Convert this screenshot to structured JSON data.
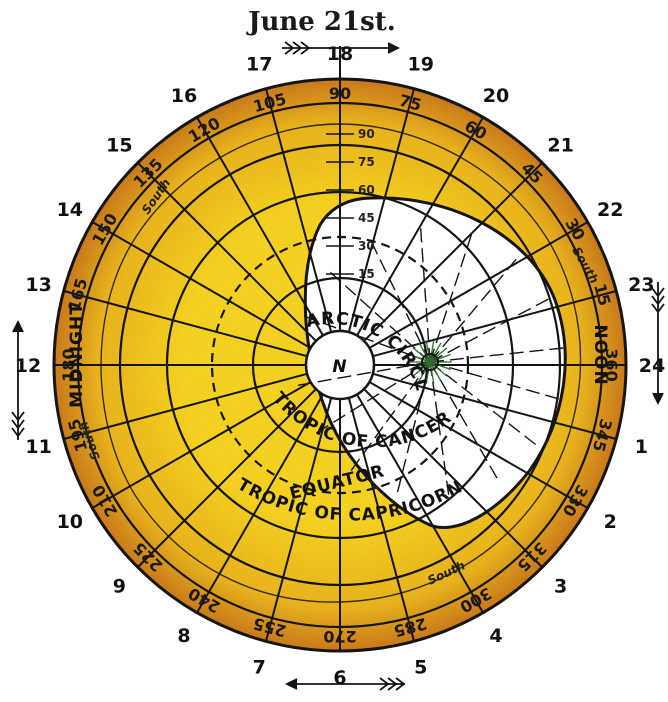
{
  "title": "June 21st.",
  "hour_labels": [
    {
      "text": "18",
      "deg": -90
    },
    {
      "text": "19",
      "deg": -75
    },
    {
      "text": "20",
      "deg": -60
    },
    {
      "text": "21",
      "deg": -45
    },
    {
      "text": "22",
      "deg": -30
    },
    {
      "text": "23",
      "deg": -15
    },
    {
      "text": "24",
      "deg": 0
    },
    {
      "text": "1",
      "deg": 15
    },
    {
      "text": "2",
      "deg": 30
    },
    {
      "text": "3",
      "deg": 45
    },
    {
      "text": "4",
      "deg": 60
    },
    {
      "text": "5",
      "deg": 75
    },
    {
      "text": "6",
      "deg": 90
    },
    {
      "text": "7",
      "deg": 105
    },
    {
      "text": "8",
      "deg": 120
    },
    {
      "text": "9",
      "deg": 135
    },
    {
      "text": "10",
      "deg": 150
    },
    {
      "text": "11",
      "deg": 165
    },
    {
      "text": "12",
      "deg": 180
    },
    {
      "text": "13",
      "deg": 195
    },
    {
      "text": "14",
      "deg": 210
    },
    {
      "text": "15",
      "deg": 225
    },
    {
      "text": "16",
      "deg": 240
    },
    {
      "text": "17",
      "deg": 255
    }
  ],
  "degree_labels": [
    {
      "text": "90",
      "deg": -90
    },
    {
      "text": "75",
      "deg": -75
    },
    {
      "text": "60",
      "deg": -60
    },
    {
      "text": "45",
      "deg": -45
    },
    {
      "text": "30",
      "deg": -30
    },
    {
      "text": "15",
      "deg": -15
    },
    {
      "text": "360",
      "deg": 0
    },
    {
      "text": "345",
      "deg": 15
    },
    {
      "text": "330",
      "deg": 30
    },
    {
      "text": "315",
      "deg": 45
    },
    {
      "text": "300",
      "deg": 60
    },
    {
      "text": "285",
      "deg": 75
    },
    {
      "text": "270",
      "deg": 90
    },
    {
      "text": "255",
      "deg": 105
    },
    {
      "text": "240",
      "deg": 120
    },
    {
      "text": "225",
      "deg": 135
    },
    {
      "text": "210",
      "deg": 150
    },
    {
      "text": "195",
      "deg": 165
    },
    {
      "text": "180",
      "deg": 180
    },
    {
      "text": "165",
      "deg": 195
    },
    {
      "text": "150",
      "deg": 210
    },
    {
      "text": "135",
      "deg": 225
    },
    {
      "text": "120",
      "deg": 240
    },
    {
      "text": "105",
      "deg": 255
    }
  ],
  "axis_scale": [
    "90",
    "75",
    "60",
    "45",
    "30",
    "15"
  ],
  "ring_labels": {
    "north": "N",
    "arctic_circle": "ARCTIC CIRCLE",
    "tropic_of_cancer": "TROPIC OF CANCER",
    "equator": "EQUATOR",
    "tropic_of_capricorn": "TROPIC OF CAPRICORN",
    "noon": "NOON",
    "midnight": "MIDNIGHT",
    "south": "South"
  },
  "colors": {
    "night": "#f2cd1e",
    "night_dark": "#b8661c",
    "day": "#ffffff",
    "lines": "#141414",
    "sun_rays": "#2e6b2e"
  }
}
